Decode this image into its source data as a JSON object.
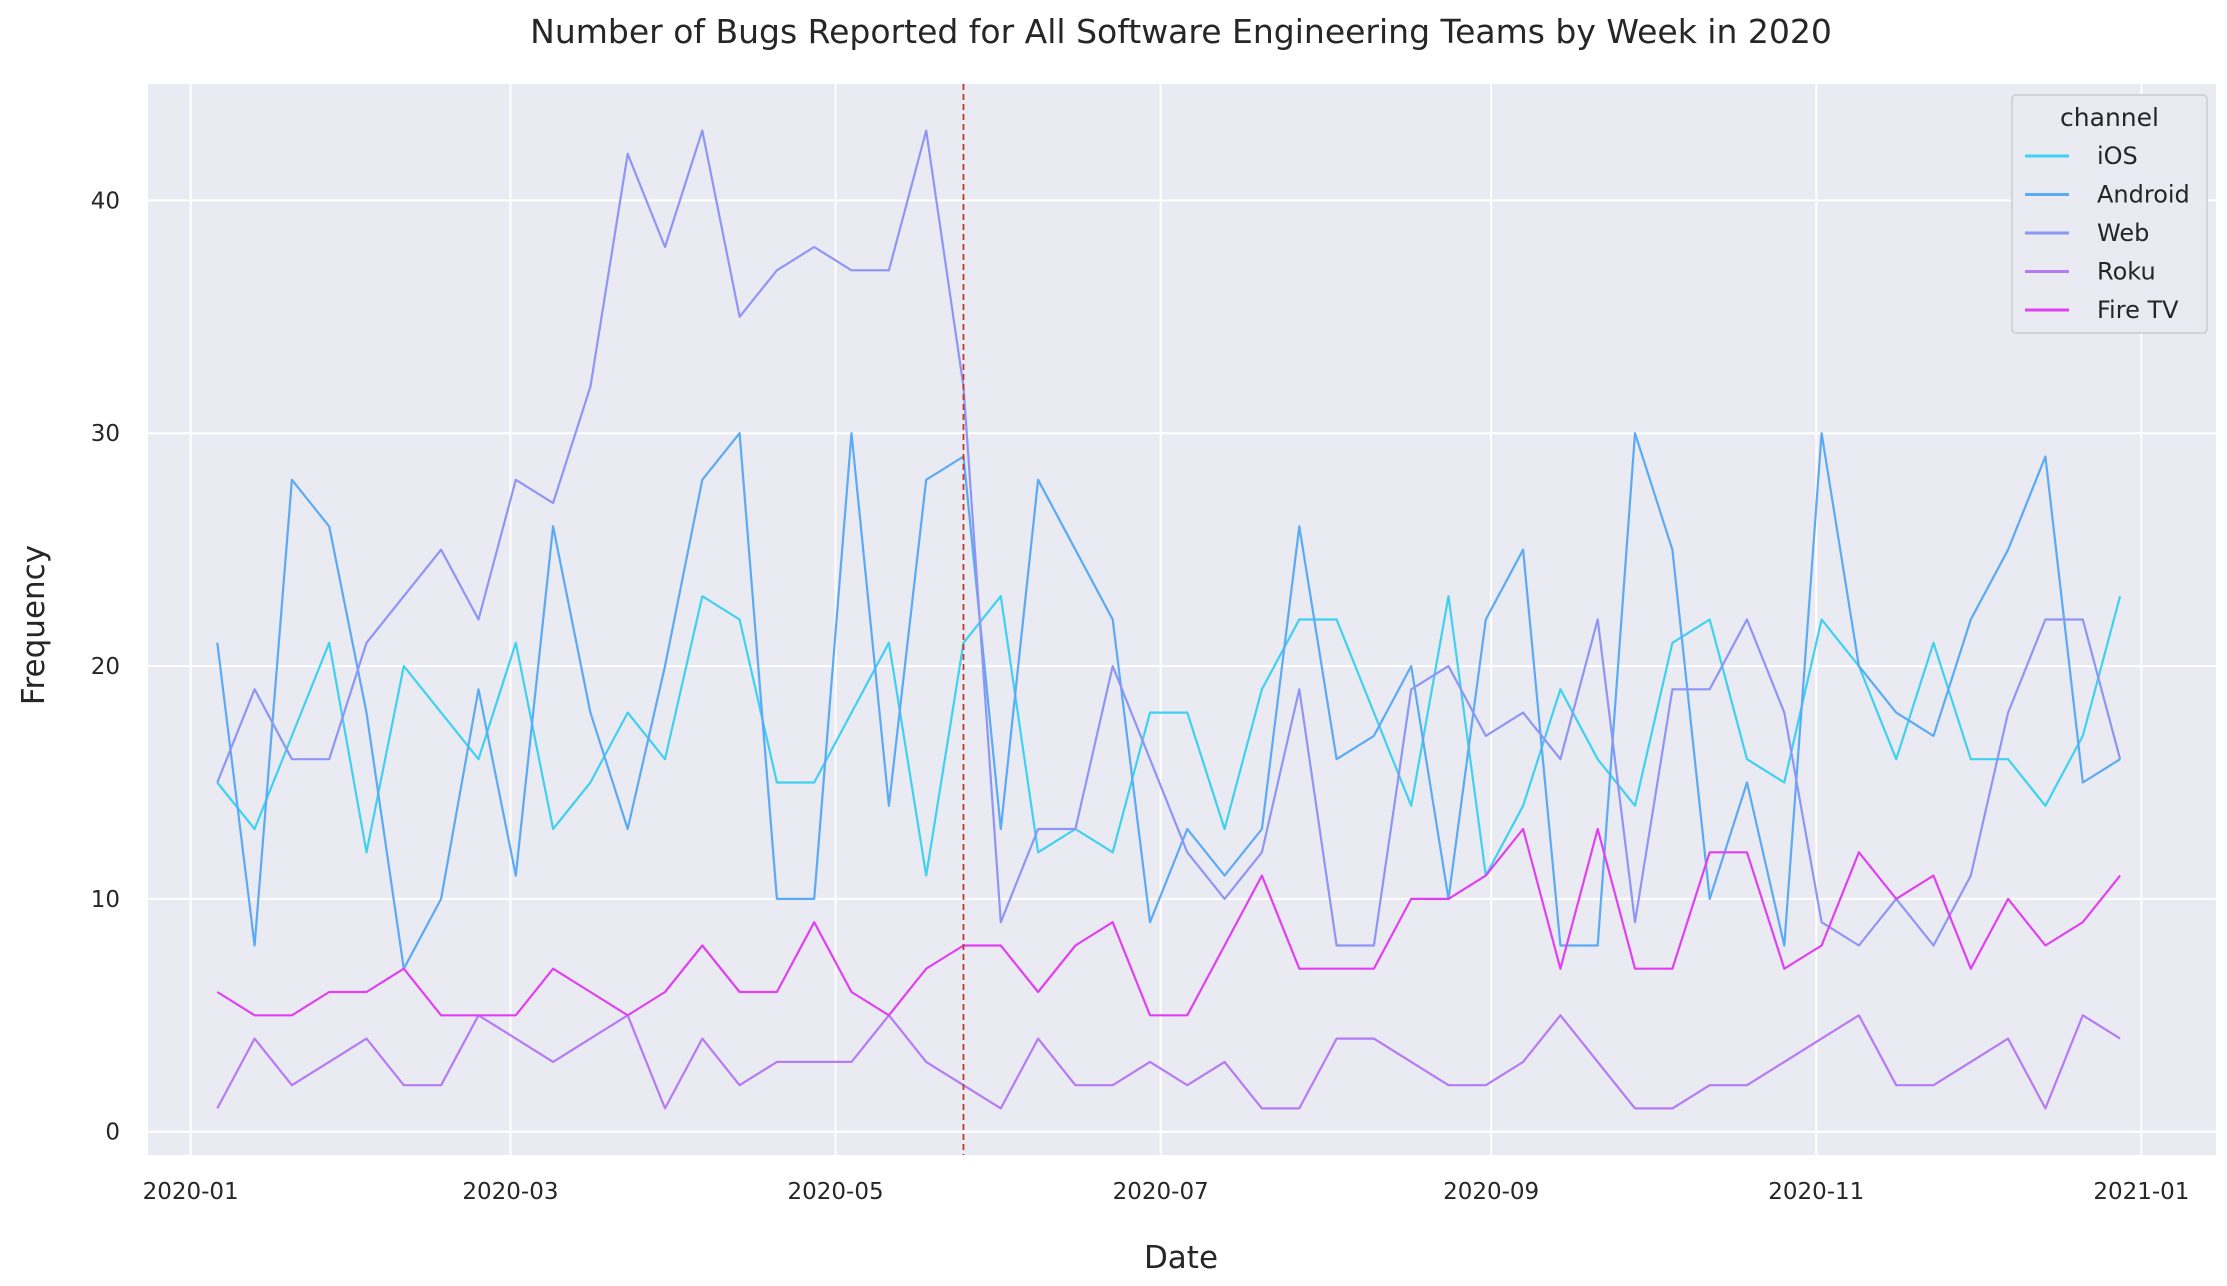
{
  "chart_data": {
    "type": "line",
    "title": "Number of Bugs Reported for All Software Engineering Teams by Week in 2020",
    "xlabel": "Date",
    "ylabel": "Frequency",
    "x_axis": "date",
    "xlim": [
      "2019-12-24",
      "2021-01-15"
    ],
    "ylim": [
      -1.0,
      45.0
    ],
    "x_ticks": [
      "2020-01",
      "2020-03",
      "2020-05",
      "2020-07",
      "2020-09",
      "2020-11",
      "2021-01"
    ],
    "y_ticks": [
      0,
      10,
      20,
      30,
      40
    ],
    "grid": true,
    "legend": {
      "title": "channel",
      "placement": "top-right"
    },
    "vline": {
      "x": "2020-05-25",
      "color": "#c0392b",
      "style": "dashed"
    },
    "x": [
      "2020-01-06",
      "2020-01-13",
      "2020-01-20",
      "2020-01-27",
      "2020-02-03",
      "2020-02-10",
      "2020-02-17",
      "2020-02-24",
      "2020-03-02",
      "2020-03-09",
      "2020-03-16",
      "2020-03-23",
      "2020-03-30",
      "2020-04-06",
      "2020-04-13",
      "2020-04-20",
      "2020-04-27",
      "2020-05-04",
      "2020-05-11",
      "2020-05-18",
      "2020-05-25",
      "2020-06-01",
      "2020-06-08",
      "2020-06-15",
      "2020-06-22",
      "2020-06-29",
      "2020-07-06",
      "2020-07-13",
      "2020-07-20",
      "2020-07-27",
      "2020-08-03",
      "2020-08-10",
      "2020-08-17",
      "2020-08-24",
      "2020-08-31",
      "2020-09-07",
      "2020-09-14",
      "2020-09-21",
      "2020-09-28",
      "2020-10-05",
      "2020-10-12",
      "2020-10-19",
      "2020-10-26",
      "2020-11-02",
      "2020-11-09",
      "2020-11-16",
      "2020-11-23",
      "2020-11-30",
      "2020-12-07",
      "2020-12-14",
      "2020-12-21",
      "2020-12-28"
    ],
    "series": [
      {
        "name": "iOS",
        "color": "#3fd1f0",
        "values": [
          15,
          13,
          17,
          21,
          12,
          20,
          18,
          16,
          21,
          13,
          15,
          18,
          16,
          23,
          22,
          15,
          15,
          18,
          21,
          11,
          21,
          23,
          12,
          13,
          12,
          18,
          18,
          13,
          19,
          22,
          22,
          18,
          14,
          23,
          11,
          14,
          19,
          16,
          14,
          21,
          22,
          16,
          15,
          22,
          20,
          16,
          21,
          16,
          16,
          14,
          17,
          23
        ]
      },
      {
        "name": "Android",
        "color": "#5aaaf5",
        "values": [
          21,
          8,
          28,
          26,
          18,
          7,
          10,
          19,
          11,
          26,
          18,
          13,
          20,
          28,
          30,
          10,
          10,
          30,
          14,
          28,
          29,
          13,
          28,
          25,
          22,
          9,
          13,
          11,
          13,
          26,
          16,
          17,
          20,
          10,
          22,
          25,
          8,
          8,
          30,
          25,
          10,
          15,
          8,
          30,
          20,
          18,
          17,
          22,
          25,
          29,
          15,
          16
        ]
      },
      {
        "name": "Web",
        "color": "#8f95f5",
        "values": [
          15,
          19,
          16,
          16,
          21,
          23,
          25,
          22,
          28,
          27,
          32,
          42,
          38,
          43,
          35,
          37,
          38,
          37,
          37,
          43,
          32,
          9,
          13,
          13,
          20,
          16,
          12,
          10,
          12,
          19,
          8,
          8,
          19,
          20,
          17,
          18,
          16,
          22,
          9,
          19,
          19,
          22,
          18,
          9,
          8,
          10,
          8,
          11,
          18,
          22,
          22,
          16
        ]
      },
      {
        "name": "Roku",
        "color": "#b57af5",
        "values": [
          1,
          4,
          2,
          3,
          4,
          2,
          2,
          5,
          4,
          3,
          4,
          5,
          1,
          4,
          2,
          3,
          3,
          3,
          5,
          3,
          2,
          1,
          4,
          2,
          2,
          3,
          2,
          3,
          1,
          1,
          4,
          4,
          3,
          2,
          2,
          3,
          5,
          3,
          1,
          1,
          2,
          2,
          3,
          4,
          5,
          2,
          2,
          3,
          4,
          1,
          5,
          4
        ]
      },
      {
        "name": "Fire TV",
        "color": "#e040f2",
        "values": [
          6,
          5,
          5,
          6,
          6,
          7,
          5,
          5,
          5,
          7,
          6,
          5,
          6,
          8,
          6,
          6,
          9,
          6,
          5,
          7,
          8,
          8,
          6,
          8,
          9,
          5,
          5,
          8,
          11,
          7,
          7,
          7,
          10,
          10,
          11,
          13,
          7,
          13,
          7,
          7,
          12,
          12,
          7,
          8,
          12,
          10,
          11,
          7,
          10,
          8,
          9,
          11
        ]
      }
    ]
  }
}
